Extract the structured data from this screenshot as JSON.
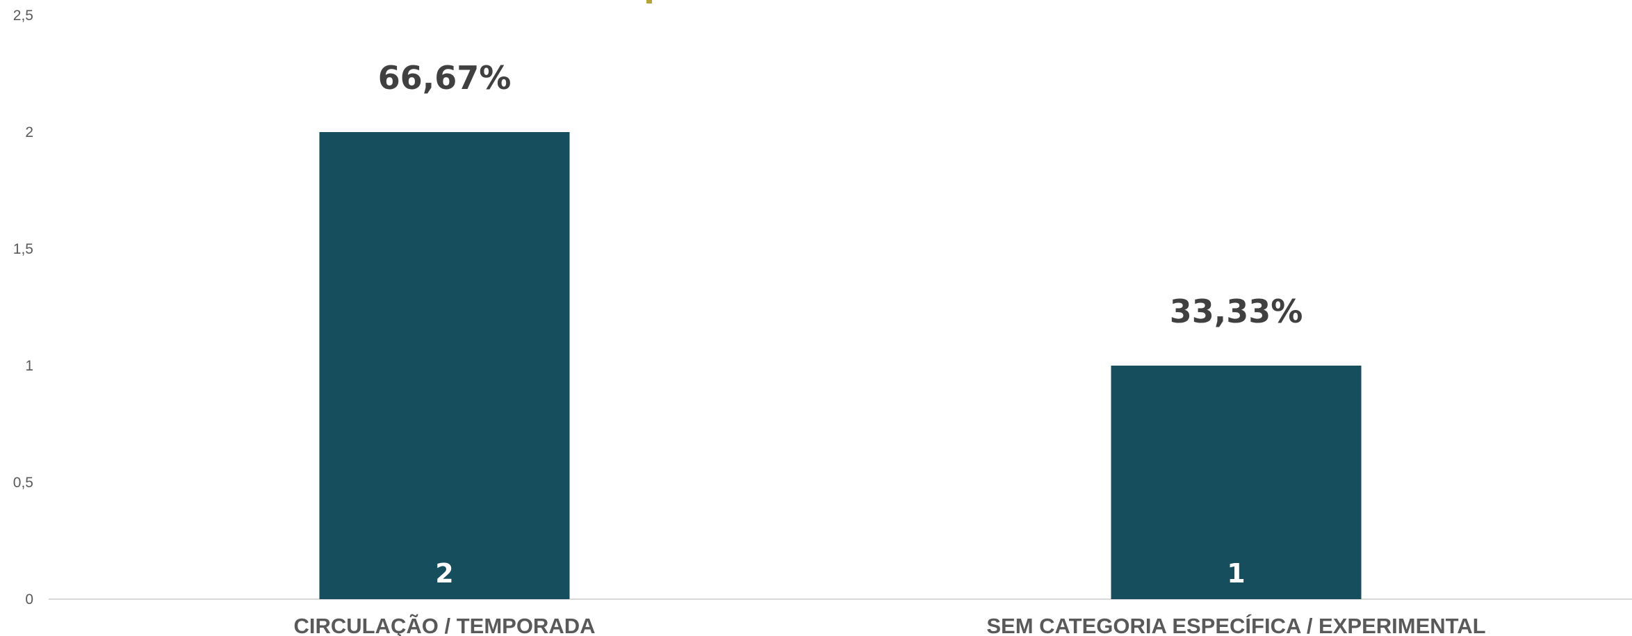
{
  "chart_data": {
    "type": "bar",
    "categories": [
      "CIRCULAÇÃO / TEMPORADA",
      "SEM CATEGORIA ESPECÍFICA / EXPERIMENTAL"
    ],
    "values": [
      2,
      1
    ],
    "value_labels": [
      "2",
      "1"
    ],
    "percent_labels": [
      "66,67%",
      "33,33%"
    ],
    "y_ticks": [
      "0",
      "0,5",
      "1",
      "1,5",
      "2",
      "2,5"
    ],
    "ylim": [
      0,
      2.5
    ],
    "grid": false,
    "legend": "none",
    "colors": {
      "bar": "#164E5D",
      "percent_label": "#404040",
      "value_label": "#FFFFFF",
      "axis_text": "#595959",
      "axis_line": "#D9D9D9"
    }
  }
}
